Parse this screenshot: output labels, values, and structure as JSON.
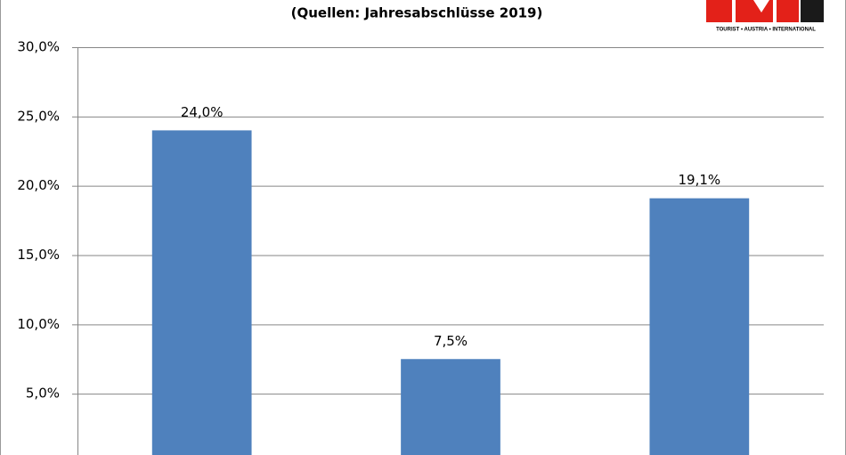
{
  "logo": {
    "text": "TOURIST • AUSTRIA • INTERNATIONAL"
  },
  "chart_data": {
    "type": "bar",
    "subtitle": "(Quellen: Jahresabschlüsse  2019)",
    "categories": [
      null,
      null,
      null
    ],
    "values": [
      24.0,
      7.5,
      19.1
    ],
    "value_labels": [
      "24,0%",
      "7,5%",
      "19,1%"
    ],
    "color": "#4f81bd",
    "ylim": [
      0,
      30
    ],
    "yticks": [
      {
        "value": 5,
        "label": "5,0%"
      },
      {
        "value": 10,
        "label": "10,0%"
      },
      {
        "value": 15,
        "label": "15,0%"
      },
      {
        "value": 20,
        "label": "20,0%"
      },
      {
        "value": 25,
        "label": "25,0%"
      },
      {
        "value": 30,
        "label": "30,0%"
      }
    ],
    "grid": true
  }
}
